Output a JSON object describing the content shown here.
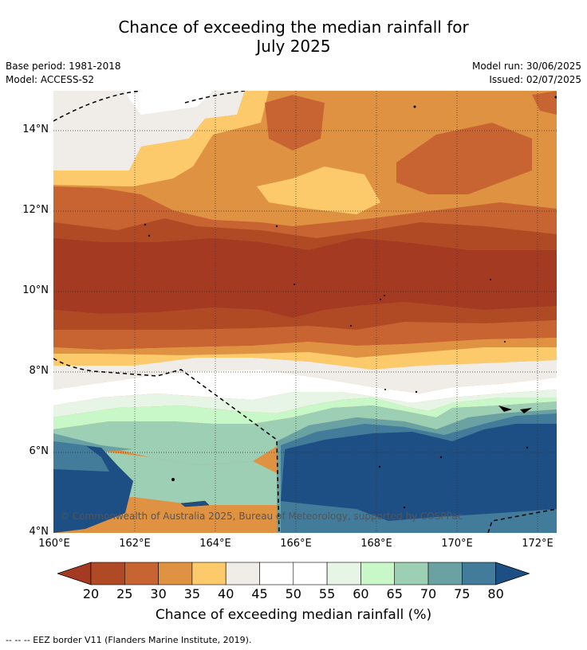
{
  "title_line1": "Chance of exceeding the median rainfall for",
  "title_line2": "July 2025",
  "base_period": "Base period: 1981-2018",
  "model": "Model: ACCESS-S2",
  "model_run": "Model run: 30/06/2025",
  "issued": "Issued: 02/07/2025",
  "copyright": "© Commonwealth of Australia 2025, Bureau of Meteorology, supported by COSPPac",
  "lat_labels": [
    "14°N",
    "12°N",
    "10°N",
    "8°N",
    "6°N",
    "4°N"
  ],
  "lon_labels": [
    "160°E",
    "162°E",
    "164°E",
    "166°E",
    "168°E",
    "170°E",
    "172°E"
  ],
  "colorbar": {
    "ticks": [
      "20",
      "25",
      "30",
      "35",
      "40",
      "45",
      "50",
      "55",
      "60",
      "65",
      "70",
      "75",
      "80"
    ],
    "colors": [
      "#a53a23",
      "#b04a25",
      "#c86431",
      "#e09243",
      "#fcca6b",
      "#f0ede8",
      "#ffffff",
      "#ffffff",
      "#e7f5e7",
      "#c8f8c8",
      "#9dcfb4",
      "#6aa1a3",
      "#437b9a",
      "#1e4f84"
    ],
    "title": "Chance of exceeding median rainfall (%)"
  },
  "footer": "--  --  -- EEZ border V11 (Flanders Marine Institute, 2019)."
}
